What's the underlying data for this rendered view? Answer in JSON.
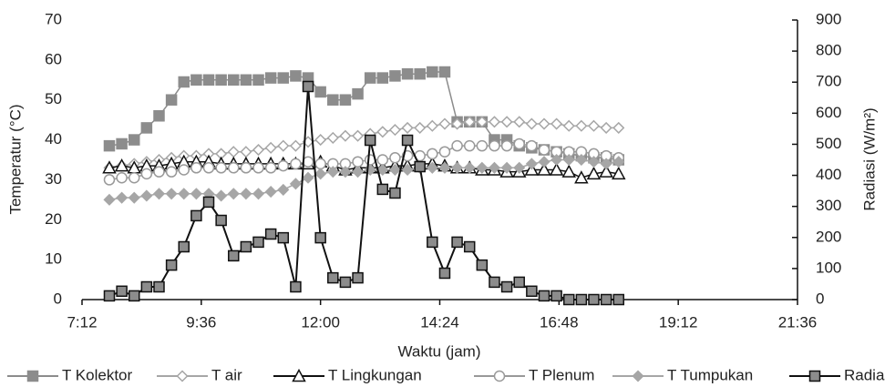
{
  "chart_data": {
    "type": "line",
    "x_label": "Waktu (jam)",
    "y_label": "Temperatur (°C)",
    "y2_label": "Radiasi (W/m²)",
    "x": [
      "7:45",
      "8:00",
      "8:15",
      "8:30",
      "8:45",
      "9:00",
      "9:15",
      "9:30",
      "9:45",
      "10:00",
      "10:15",
      "10:30",
      "10:45",
      "11:00",
      "11:15",
      "11:30",
      "11:45",
      "12:00",
      "12:15",
      "12:30",
      "12:45",
      "13:00",
      "13:15",
      "13:30",
      "13:45",
      "14:00",
      "14:15",
      "14:30",
      "14:45",
      "15:00",
      "15:15",
      "15:30",
      "15:45",
      "16:00",
      "16:15",
      "16:30",
      "16:45",
      "17:00",
      "17:15",
      "17:30",
      "17:45",
      "18:00"
    ],
    "xlim": [
      "7:12",
      "21:36"
    ],
    "xticks": [
      "7:12",
      "9:36",
      "12:00",
      "14:24",
      "16:48",
      "19:12",
      "21:36"
    ],
    "ylim": [
      0,
      70
    ],
    "yticks": [
      0,
      10,
      20,
      30,
      40,
      50,
      60,
      70
    ],
    "y2lim": [
      0,
      900
    ],
    "y2ticks": [
      0,
      100,
      200,
      300,
      400,
      500,
      600,
      700,
      800,
      900
    ],
    "series": [
      {
        "name": "T Kolektor",
        "color": "#8c8c8c",
        "marker": "square",
        "marker_fill": "#8c8c8c",
        "values": [
          38.5,
          39,
          40,
          43,
          46,
          50,
          54.5,
          55,
          55,
          55,
          55,
          55,
          55,
          55.5,
          55.5,
          56,
          55.5,
          52,
          50,
          50,
          51.5,
          55.5,
          55.5,
          56,
          56.5,
          56.5,
          57,
          57,
          44.5,
          44.5,
          44.5,
          40,
          40,
          38.5,
          38,
          37.5,
          37,
          36.5,
          36,
          35.5,
          35.5,
          35
        ]
      },
      {
        "name": "T air",
        "color": "#a6a6a6",
        "marker": "diamond",
        "marker_fill": "#ffffff",
        "values": [
          33,
          33.5,
          34,
          34.5,
          35,
          35.5,
          36,
          36,
          36.5,
          36.5,
          37,
          37,
          37.5,
          38,
          38.5,
          38.5,
          39.5,
          40,
          40.5,
          41,
          41,
          41.5,
          42,
          42.5,
          43,
          43,
          43.5,
          44,
          44,
          44.5,
          44.5,
          44.5,
          44.5,
          44.5,
          44,
          44,
          44,
          43.5,
          43.5,
          43.5,
          43,
          43
        ]
      },
      {
        "name": "T Lingkungan",
        "color": "#111111",
        "marker": "triangle",
        "marker_fill": "#ffffff",
        "values": [
          33,
          33.5,
          33,
          33.5,
          33.5,
          34,
          34.5,
          34.5,
          34.5,
          34,
          34,
          34,
          34,
          34,
          34,
          34,
          34,
          34.5,
          33.5,
          32.5,
          33,
          33,
          33,
          33.5,
          33.5,
          34,
          34,
          33.5,
          33,
          33,
          32.5,
          32.5,
          32,
          32,
          32.5,
          32.5,
          32.5,
          32,
          30.5,
          31.5,
          32,
          31.5
        ]
      },
      {
        "name": "T Plenum",
        "color": "#999999",
        "marker": "circle",
        "marker_fill": "#ffffff",
        "values": [
          30,
          30.5,
          30.5,
          31.5,
          32,
          32,
          32.5,
          33,
          33,
          33,
          33,
          33,
          33,
          33,
          33.5,
          34,
          34.5,
          34,
          34,
          34,
          34.5,
          35,
          35,
          35.5,
          36,
          36,
          36.5,
          37,
          38.5,
          38.5,
          38.5,
          38.5,
          38.5,
          39,
          38.5,
          37.5,
          37,
          37,
          37,
          36.5,
          36,
          35.5
        ]
      },
      {
        "name": "T Tumpukan",
        "color": "#a6a6a6",
        "marker": "diamond",
        "marker_fill": "#a6a6a6",
        "values": [
          25,
          25.5,
          25.5,
          26,
          26.5,
          26.5,
          26.5,
          26.5,
          26.5,
          26,
          26.5,
          26.5,
          26.5,
          27,
          27.5,
          29,
          30.5,
          31.5,
          32,
          32,
          32,
          32.5,
          32.5,
          32.5,
          32.5,
          33,
          33,
          33,
          33,
          33,
          33,
          33,
          33,
          33,
          34,
          34.5,
          35,
          35,
          35,
          34.5,
          34,
          34.5
        ]
      },
      {
        "name": "Radiasi",
        "color": "#111111",
        "marker": "square",
        "marker_fill": "#8c8c8c",
        "axis": "y2",
        "values": [
          12,
          27,
          12,
          41,
          41,
          111,
          170,
          270,
          314,
          255,
          141,
          170,
          185,
          211,
          199,
          41,
          686,
          199,
          70,
          56,
          70,
          513,
          355,
          343,
          513,
          428,
          185,
          85,
          185,
          170,
          111,
          56,
          41,
          56,
          27,
          12,
          12,
          0,
          0,
          0,
          0,
          0
        ]
      }
    ]
  }
}
